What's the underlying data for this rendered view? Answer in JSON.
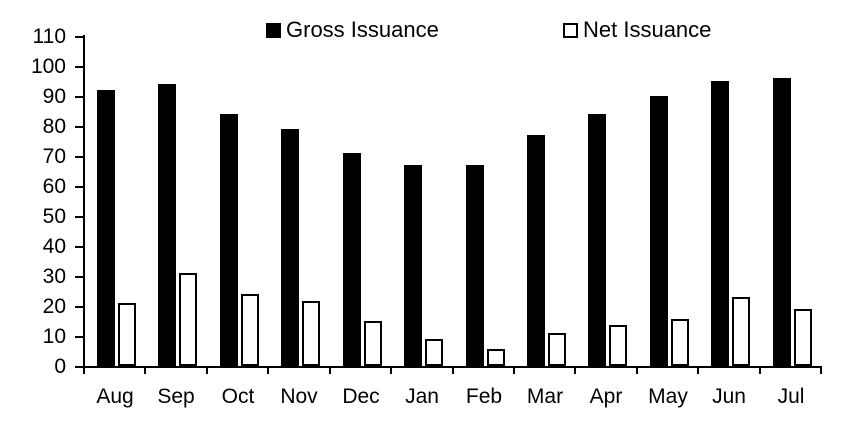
{
  "chart_data": {
    "type": "bar",
    "title": "",
    "xlabel": "",
    "ylabel": "",
    "categories": [
      "Aug",
      "Sep",
      "Oct",
      "Nov",
      "Dec",
      "Jan",
      "Feb",
      "Mar",
      "Apr",
      "May",
      "Jun",
      "Jul"
    ],
    "series": [
      {
        "name": "Gross Issuance",
        "style": "filled",
        "color": "#000000",
        "values": [
          92,
          94,
          84,
          79,
          71,
          67,
          67,
          77,
          84,
          90,
          95,
          96
        ]
      },
      {
        "name": "Net Issuance",
        "style": "outlined",
        "color": "#ffffff",
        "border_color": "#000000",
        "values": [
          21,
          31,
          24,
          21.5,
          15,
          9,
          5.5,
          11,
          13.5,
          15.5,
          23,
          19
        ]
      }
    ],
    "ylim": [
      0,
      110
    ],
    "y_ticks": [
      0,
      10,
      20,
      30,
      40,
      50,
      60,
      70,
      80,
      90,
      100,
      110
    ],
    "grid": false,
    "legend_position": "top-inside"
  }
}
